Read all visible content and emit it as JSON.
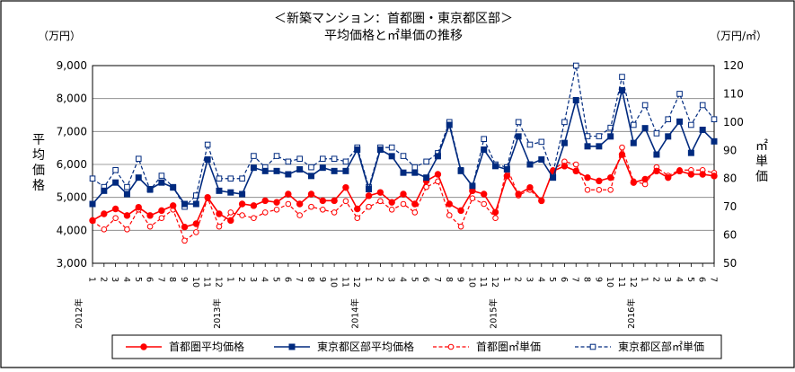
{
  "chart_data": {
    "type": "line",
    "title": "＜新築マンション：首都圏・東京都区部＞",
    "subtitle": "平均価格と㎡単価の推移",
    "y_left_unit": "（万円）",
    "y_right_unit": "（万円/㎡）",
    "y_left_label": [
      "平",
      "均",
      "価",
      "格"
    ],
    "y_right_label": [
      "㎡",
      "単",
      "価"
    ],
    "y_left_range": [
      3000,
      9000
    ],
    "y_left_ticks": [
      "3,000",
      "4,000",
      "5,000",
      "6,000",
      "7,000",
      "8,000",
      "9,000"
    ],
    "y_right_range": [
      50,
      120
    ],
    "y_right_ticks": [
      "50",
      "60",
      "70",
      "80",
      "90",
      "100",
      "110",
      "120"
    ],
    "months": [
      "1",
      "2",
      "3",
      "4",
      "5",
      "6",
      "7",
      "8",
      "9",
      "10",
      "11",
      "12",
      "1",
      "2",
      "3",
      "4",
      "5",
      "6",
      "7",
      "8",
      "9",
      "10",
      "11",
      "12",
      "1",
      "2",
      "3",
      "4",
      "5",
      "6",
      "7",
      "8",
      "9",
      "10",
      "11",
      "12",
      "1",
      "2",
      "3",
      "4",
      "5",
      "6",
      "7",
      "8",
      "9",
      "10",
      "11",
      "12",
      "1",
      "2",
      "3",
      "4",
      "5",
      "6",
      "7"
    ],
    "year_labels": [
      {
        "index": 0,
        "label": "2012年"
      },
      {
        "index": 12,
        "label": "2013年"
      },
      {
        "index": 24,
        "label": "2014年"
      },
      {
        "index": 36,
        "label": "2015年"
      },
      {
        "index": 48,
        "label": "2016年"
      }
    ],
    "series": [
      {
        "name": "首都圏平均価格",
        "axis": "left",
        "color": "#ff0000",
        "style": "solid",
        "marker": "circle-filled",
        "values": [
          4300,
          4500,
          4650,
          4450,
          4700,
          4450,
          4600,
          4750,
          4100,
          4200,
          5000,
          4500,
          4300,
          4800,
          4750,
          4900,
          4850,
          5100,
          4800,
          5100,
          4900,
          4900,
          5300,
          4650,
          5050,
          5150,
          4850,
          5100,
          4800,
          5500,
          5700,
          4800,
          4600,
          5200,
          5100,
          4550,
          5650,
          5100,
          5300,
          4900,
          5800,
          5950,
          5800,
          5600,
          5500,
          5600,
          6300,
          5450,
          5550,
          5800,
          5600,
          5800,
          5700,
          5700,
          5650
        ]
      },
      {
        "name": "東京都区部平均価格",
        "axis": "left",
        "color": "#002a7f",
        "style": "solid",
        "marker": "square-filled",
        "values": [
          4800,
          5200,
          5450,
          5100,
          5600,
          5250,
          5450,
          5300,
          4800,
          4800,
          6150,
          5200,
          5150,
          5100,
          5900,
          5800,
          5800,
          5700,
          5850,
          5650,
          5900,
          5800,
          5800,
          6450,
          5250,
          6450,
          6250,
          5750,
          5750,
          5600,
          6250,
          7200,
          5800,
          5350,
          6450,
          5950,
          5850,
          6850,
          6000,
          6150,
          5600,
          6650,
          7950,
          6550,
          6550,
          6850,
          8250,
          6650,
          7100,
          6300,
          6850,
          7300,
          6350,
          7050,
          6700
        ]
      },
      {
        "name": "首都圏㎡単価",
        "axis": "right",
        "color": "#ff0000",
        "style": "dashed",
        "marker": "circle-open",
        "values": [
          65,
          62,
          66,
          62,
          69,
          63,
          66,
          69,
          58,
          61,
          73,
          63,
          68,
          67,
          66,
          68,
          69,
          71,
          67,
          70,
          69,
          68,
          72,
          66,
          70,
          72,
          69,
          71,
          68,
          77,
          79,
          67,
          63,
          73,
          71,
          66,
          84,
          74,
          76,
          72,
          83,
          86,
          85,
          76,
          76,
          76,
          91,
          79,
          78,
          84,
          81,
          83,
          83,
          83,
          82
        ]
      },
      {
        "name": "東京都区部㎡単価",
        "axis": "right",
        "color": "#002a7f",
        "style": "dashed",
        "marker": "square-open",
        "values": [
          80,
          77,
          83,
          77,
          87,
          76,
          81,
          77,
          70,
          74,
          92,
          80,
          80,
          80,
          88,
          84,
          88,
          86,
          87,
          84,
          87,
          87,
          86,
          91,
          77,
          91,
          91,
          88,
          84,
          86,
          89,
          100,
          83,
          77,
          94,
          85,
          84,
          100,
          92,
          93,
          82,
          100,
          120,
          95,
          95,
          98,
          116,
          99,
          106,
          96,
          101,
          110,
          99,
          106,
          101
        ]
      }
    ],
    "legend": [
      {
        "label": "首都圏平均価格",
        "series": 0
      },
      {
        "label": "東京都区部平均価格",
        "series": 1
      },
      {
        "label": "首都圏㎡単価",
        "series": 2
      },
      {
        "label": "東京都区部㎡単価",
        "series": 3
      }
    ],
    "grid": true,
    "legend_position": "bottom"
  }
}
